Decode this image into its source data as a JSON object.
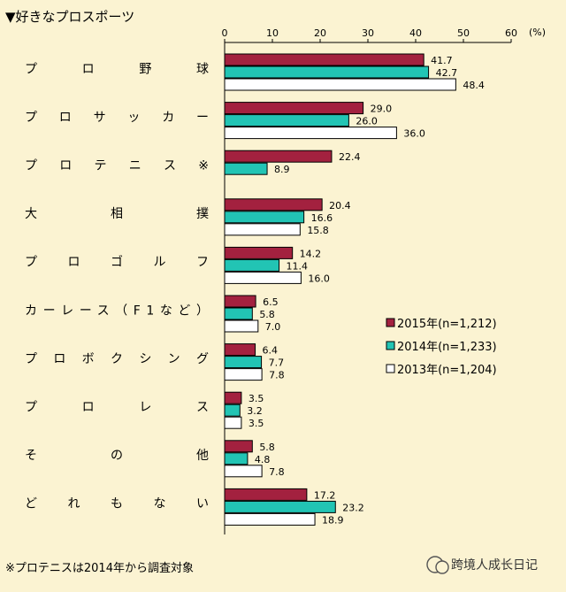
{
  "title": "▼好きなプロスポーツ",
  "footnote": "※プロテニスは2014年から調査対象",
  "watermark": "跨境人成长日记",
  "chart_data": {
    "type": "bar",
    "orientation": "horizontal",
    "title": "▼好きなプロスポーツ",
    "unit": "(%)",
    "xlim": [
      0,
      60
    ],
    "xticks": [
      "0",
      "10",
      "20",
      "30",
      "40",
      "50",
      "60"
    ],
    "categories": [
      "プ　ロ　野　球",
      "プロサッカー",
      "プロテニス※",
      "大　相　撲",
      "プロゴルフ",
      "カーレース（F1など）",
      "プロボクシング",
      "プ　ロ　レ　ス",
      "そ　の　他",
      "ど　れ　も　な　い"
    ],
    "series": [
      {
        "name": "2015年(n=1,212)",
        "color": "#a3213f",
        "values": [
          41.7,
          29.0,
          22.4,
          20.4,
          14.2,
          6.5,
          6.4,
          3.5,
          5.8,
          17.2
        ],
        "labels": [
          "41.7",
          "29.0",
          "22.4",
          "20.4",
          "14.2",
          "6.5",
          "6.4",
          "3.5",
          "5.8",
          "17.2"
        ]
      },
      {
        "name": "2014年(n=1,233)",
        "color": "#22c4b4",
        "values": [
          42.7,
          26.0,
          8.9,
          16.6,
          11.4,
          5.8,
          7.7,
          3.2,
          4.8,
          23.2
        ],
        "labels": [
          "42.7",
          "26.0",
          "8.9",
          "16.6",
          "11.4",
          "5.8",
          "7.7",
          "3.2",
          "4.8",
          "23.2"
        ]
      },
      {
        "name": "2013年(n=1,204)",
        "color": "#ffffff",
        "values": [
          48.4,
          36.0,
          null,
          15.8,
          16.0,
          7.0,
          7.8,
          3.5,
          7.8,
          18.9
        ],
        "labels": [
          "48.4",
          "36.0",
          "",
          "15.8",
          "16.0",
          "7.0",
          "7.8",
          "3.5",
          "7.8",
          "18.9"
        ]
      }
    ],
    "legend_position": "right-middle",
    "grid": false
  }
}
